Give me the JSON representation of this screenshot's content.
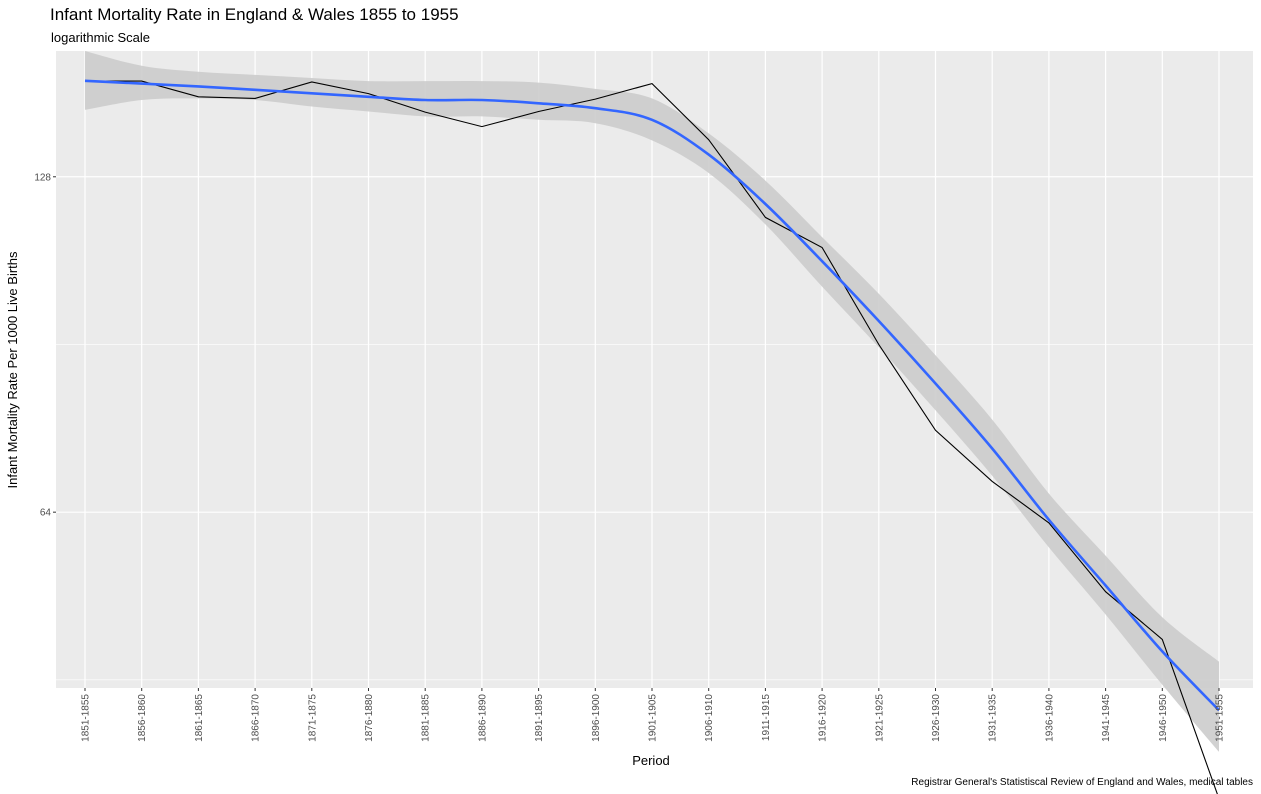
{
  "chart_data": {
    "type": "line",
    "title": "Infant Mortality Rate in England & Wales 1855 to 1955",
    "subtitle": "logarithmic Scale",
    "xlabel": "Period",
    "ylabel": "Infant Mortality Rate Per 1000 Live Births",
    "caption": "Registrar General's Statistiscal Review of England and Wales, medical tables",
    "y_scale": "log2",
    "ylim": [
      44.5,
      166
    ],
    "y_ticks": [
      128,
      64
    ],
    "y_tick_labels": [
      "128",
      "64"
    ],
    "grid": true,
    "categories": [
      "1851-1855",
      "1856-1860",
      "1861-1865",
      "1866-1870",
      "1871-1875",
      "1876-1880",
      "1881-1885",
      "1886-1890",
      "1891-1895",
      "1896-1900",
      "1901-1905",
      "1906-1910",
      "1911-1915",
      "1916-1920",
      "1921-1925",
      "1926-1930",
      "1931-1935",
      "1936-1940",
      "1941-1945",
      "1946-1950",
      "1951-1955"
    ],
    "series": [
      {
        "kind": "observed",
        "color": "#000000",
        "values": [
          156,
          156,
          151,
          150.5,
          155.7,
          152,
          146.3,
          142,
          146.5,
          150.3,
          155.2,
          138.2,
          117.7,
          110.6,
          90.5,
          75.8,
          68.2,
          62.6,
          54.3,
          49.2,
          35.4
        ]
      },
      {
        "kind": "loess-smooth",
        "color": "#3366FF",
        "values": [
          156.1,
          155.2,
          154.3,
          153.2,
          152.1,
          151,
          150,
          150,
          149,
          147.5,
          144,
          134,
          121,
          107.5,
          95,
          83.5,
          73,
          63,
          55,
          48,
          42.5
        ],
        "band_upper": [
          166,
          161,
          159,
          158,
          157,
          156,
          156,
          156,
          155.5,
          153.5,
          150.5,
          140,
          127,
          113,
          100.5,
          88.5,
          77.5,
          66.5,
          58.5,
          51.5,
          47
        ],
        "band_lower": [
          147,
          150,
          150.5,
          150,
          148,
          146.5,
          145,
          145,
          144,
          143,
          138,
          129,
          116,
          102,
          90,
          79,
          69,
          59.5,
          51.8,
          44.8,
          39
        ],
        "band_color": "#cccccc"
      }
    ]
  }
}
